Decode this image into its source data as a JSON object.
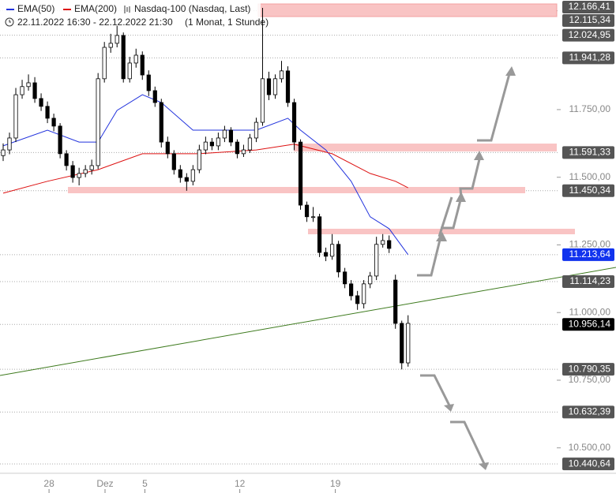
{
  "chart_data": {
    "type": "candlestick",
    "title": "Nasdaq-100 (Nasdaq, Last)",
    "subtitle": "22.11.2022 16:30 - 22.12.2022 21:30",
    "period": "(1 Monat, 1 Stunde)",
    "ylim": [
      10406,
      12155
    ],
    "xlim": [
      -0.5,
      87.5
    ],
    "yticks": [
      {
        "value": 11750,
        "label": "11.750,00"
      },
      {
        "value": 11500,
        "label": "11.500,00"
      },
      {
        "value": 11250,
        "label": "11.250,00"
      },
      {
        "value": 11000,
        "label": "11.000,00"
      },
      {
        "value": 10750,
        "label": "10.750,00"
      },
      {
        "value": 10500,
        "label": "10.500,00"
      }
    ],
    "xticks": [
      {
        "value": 7.25,
        "label": "28"
      },
      {
        "value": 16.1,
        "label": "Dez"
      },
      {
        "value": 22.4,
        "label": "5"
      },
      {
        "value": 37.4,
        "label": "12"
      },
      {
        "value": 52.5,
        "label": "19"
      }
    ],
    "open": [
      11580,
      11601,
      11645,
      11805,
      11835,
      11849,
      11791,
      11762,
      11718,
      11689,
      11587,
      11543,
      11499,
      11514,
      11528,
      11543,
      11864,
      11980,
      11995,
      12024,
      11864,
      11922,
      11951,
      11878,
      11820,
      11776,
      11630,
      11587,
      11528,
      11499,
      11485,
      11528,
      11601,
      11630,
      11616,
      11645,
      11674,
      11630,
      11587,
      11601,
      11645,
      11703,
      11864,
      11805,
      11864,
      11893,
      11776,
      11630,
      11397,
      11354,
      11354,
      11222,
      11208,
      11252,
      11150,
      11106,
      11062,
      11033,
      11106,
      11135,
      11252,
      11266,
      11120,
      10960,
      10814
    ],
    "high": [
      11625,
      11665,
      11830,
      11860,
      11880,
      11870,
      11810,
      11780,
      11735,
      11700,
      11600,
      11560,
      11535,
      11545,
      11565,
      11885,
      12000,
      12030,
      12060,
      12035,
      11945,
      11975,
      11965,
      11895,
      11835,
      11790,
      11650,
      11600,
      11545,
      11515,
      11545,
      11620,
      11650,
      11645,
      11665,
      11690,
      11685,
      11640,
      11620,
      11660,
      11720,
      12126,
      11890,
      11880,
      11930,
      11910,
      11790,
      11640,
      11410,
      11390,
      11365,
      11240,
      11290,
      11265,
      11165,
      11120,
      11080,
      11120,
      11150,
      11280,
      11290,
      11285,
      11140,
      10970,
      10990
    ],
    "low": [
      11560,
      11585,
      11630,
      11790,
      11820,
      11775,
      11745,
      11700,
      11670,
      11570,
      11525,
      11480,
      11470,
      11500,
      11510,
      11530,
      11850,
      11960,
      11980,
      11850,
      11850,
      11905,
      11860,
      11800,
      11760,
      11610,
      11570,
      11510,
      11480,
      11450,
      11470,
      11515,
      11585,
      11600,
      11600,
      11630,
      11615,
      11570,
      11575,
      11590,
      11630,
      11690,
      11785,
      11790,
      11850,
      11760,
      11600,
      11380,
      11335,
      11335,
      11205,
      11190,
      11195,
      11130,
      11090,
      11045,
      11010,
      11015,
      11090,
      11120,
      11240,
      11220,
      10940,
      10790,
      10800
    ],
    "close": [
      11601,
      11645,
      11805,
      11835,
      11849,
      11791,
      11762,
      11718,
      11689,
      11587,
      11543,
      11499,
      11514,
      11528,
      11543,
      11864,
      11980,
      11995,
      12024,
      11864,
      11922,
      11951,
      11878,
      11820,
      11776,
      11630,
      11587,
      11528,
      11499,
      11485,
      11528,
      11601,
      11630,
      11616,
      11645,
      11674,
      11630,
      11587,
      11601,
      11645,
      11703,
      11864,
      11805,
      11864,
      11893,
      11776,
      11630,
      11397,
      11354,
      11354,
      11222,
      11208,
      11252,
      11150,
      11106,
      11062,
      11033,
      11106,
      11135,
      11252,
      11266,
      11237,
      10960,
      10814,
      10960
    ],
    "series": [
      {
        "name": "EMA(50)",
        "color": "#2233dd",
        "x": [
          0,
          7,
          12,
          15,
          18,
          22,
          25,
          30,
          35,
          40,
          45,
          47,
          51,
          55,
          58,
          61,
          64
        ],
        "values": [
          11616,
          11674,
          11630,
          11630,
          11747,
          11805,
          11776,
          11674,
          11674,
          11674,
          11718,
          11674,
          11601,
          11485,
          11354,
          11310,
          11214
        ]
      },
      {
        "name": "EMA(200)",
        "color": "#dd1111",
        "x": [
          0,
          7,
          15,
          22,
          31,
          40,
          46,
          52,
          58,
          62,
          64
        ],
        "values": [
          11441,
          11485,
          11528,
          11587,
          11587,
          11601,
          11622,
          11587,
          11514,
          11485,
          11461
        ]
      }
    ],
    "price_levels": [
      {
        "value": 12166.41,
        "label": "12.166,41",
        "color": "#555555"
      },
      {
        "value": 12115.34,
        "label": "12.115,34",
        "color": "#555555"
      },
      {
        "value": 12024.95,
        "label": "12.024,95",
        "color": "#555555"
      },
      {
        "value": 11941.28,
        "label": "11.941,28",
        "color": "#555555"
      },
      {
        "value": 11591.33,
        "label": "11.591,33",
        "color": "#555555"
      },
      {
        "value": 11450.34,
        "label": "11.450,34",
        "color": "#555555"
      },
      {
        "value": 11213.64,
        "label": "11.213,64",
        "color": "#1133ee"
      },
      {
        "value": 11114.23,
        "label": "11.114,23",
        "color": "#555555"
      },
      {
        "value": 10956.14,
        "label": "10.956,14",
        "color": "#000000"
      },
      {
        "value": 10790.35,
        "label": "10.790,35",
        "color": "#555555"
      },
      {
        "value": 10632.39,
        "label": "10.632,39",
        "color": "#555555"
      },
      {
        "value": 10440.64,
        "label": "10.440,64",
        "color": "#555555"
      }
    ]
  }
}
